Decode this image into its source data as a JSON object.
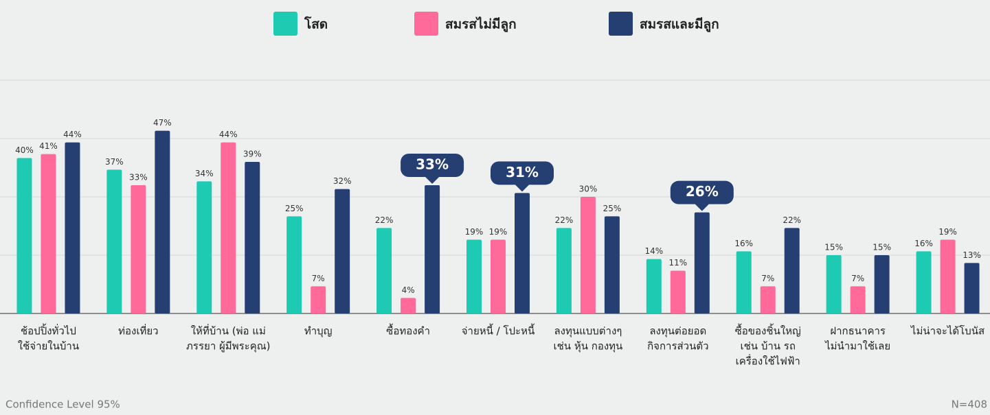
{
  "chart_data": {
    "type": "bar",
    "categories": [
      [
        "ช้อปปิ้งทั่วไป",
        "ใช้จ่ายในบ้าน"
      ],
      [
        "ท่องเที่ยว"
      ],
      [
        "ให้ที่บ้าน (พ่อ แม่",
        "ภรรยา ผู้มีพระคุณ)"
      ],
      [
        "ทำบุญ"
      ],
      [
        "ซื้อทองคำ"
      ],
      [
        "จ่ายหนี้ / โปะหนี้"
      ],
      [
        "ลงทุนแบบต่างๆ",
        "เช่น หุ้น กองทุน"
      ],
      [
        "ลงทุนต่อยอด",
        "กิจการส่วนตัว"
      ],
      [
        "ซื้อของชิ้นใหญ่",
        "เช่น บ้าน รถ",
        "เครื่องใช้ไฟฟ้า"
      ],
      [
        "ฝากธนาคาร",
        "ไม่นำมาใช้เลย"
      ],
      [
        "ไม่น่าจะได้โบนัส"
      ]
    ],
    "series": [
      {
        "name": "โสด",
        "color": "#1fcab3",
        "values": [
          40,
          37,
          34,
          25,
          22,
          19,
          22,
          14,
          16,
          15,
          16
        ],
        "value_labels": [
          "40%",
          "37%",
          "34%",
          "25%",
          "22%",
          "19%",
          "22%",
          "14%",
          "16%",
          "15%",
          "16%"
        ]
      },
      {
        "name": "สมรสไม่มีลูก",
        "color": "#ff6a9b",
        "values": [
          41,
          33,
          44,
          7,
          4,
          19,
          30,
          11,
          7,
          7,
          19
        ],
        "value_labels": [
          "41%",
          "33%",
          "44%",
          "7%",
          "4%",
          "19%",
          "30%",
          "11%",
          "7%",
          "7%",
          "19%"
        ]
      },
      {
        "name": "สมรสและมีลูก",
        "color": "#253f73",
        "values": [
          44,
          47,
          39,
          32,
          33,
          31,
          25,
          26,
          22,
          15,
          13
        ],
        "value_labels": [
          "44%",
          "47%",
          "39%",
          "32%",
          "33%",
          "31%",
          "25%",
          "26%",
          "22%",
          "15%",
          "13%"
        ],
        "highlight": [
          4,
          5,
          7
        ]
      }
    ],
    "ylim": [
      0,
      60
    ],
    "yticks": [
      0,
      15,
      30,
      45,
      60
    ],
    "grid": true,
    "legend": "top",
    "footnote_left": "Confidence Level 95%",
    "footnote_right": "N=408"
  }
}
